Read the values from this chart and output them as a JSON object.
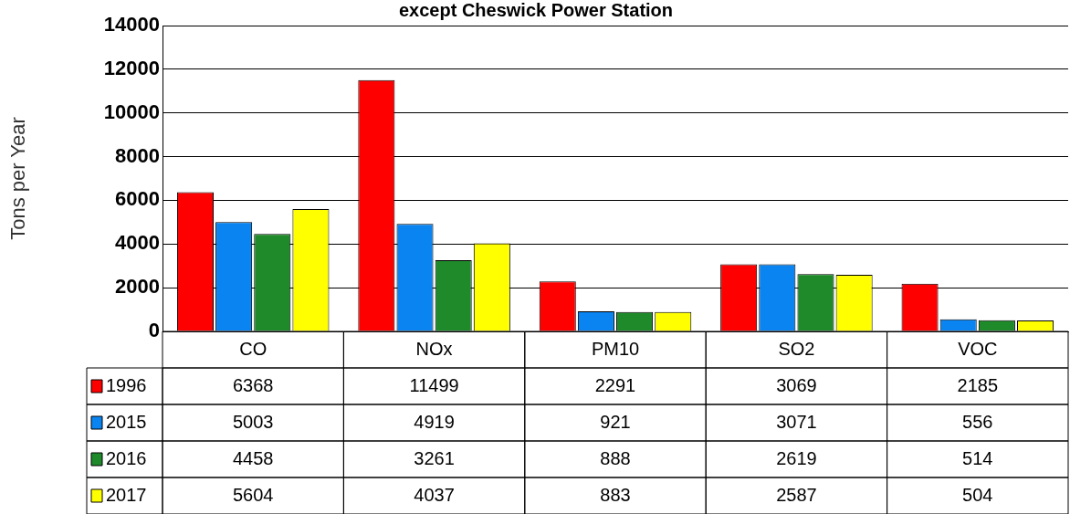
{
  "chart_data": {
    "type": "bar",
    "title": "except Cheswick Power Station",
    "ylabel": "Tons per Year",
    "categories": [
      "CO",
      "NOx",
      "PM10",
      "SO2",
      "VOC"
    ],
    "series": [
      {
        "name": "1996",
        "color": "#ff0000",
        "values": [
          6368,
          11499,
          2291,
          3069,
          2185
        ]
      },
      {
        "name": "2015",
        "color": "#0a84f0",
        "values": [
          5003,
          4919,
          921,
          3071,
          556
        ]
      },
      {
        "name": "2016",
        "color": "#1f8a2a",
        "values": [
          4458,
          3261,
          888,
          2619,
          514
        ]
      },
      {
        "name": "2017",
        "color": "#ffff00",
        "values": [
          5604,
          4037,
          883,
          2587,
          504
        ]
      }
    ],
    "ylim": [
      0,
      14000
    ],
    "yticks": [
      0,
      2000,
      4000,
      6000,
      8000,
      10000,
      12000,
      14000
    ],
    "grid": "y",
    "legend": "bottom left",
    "data_labels": true
  }
}
